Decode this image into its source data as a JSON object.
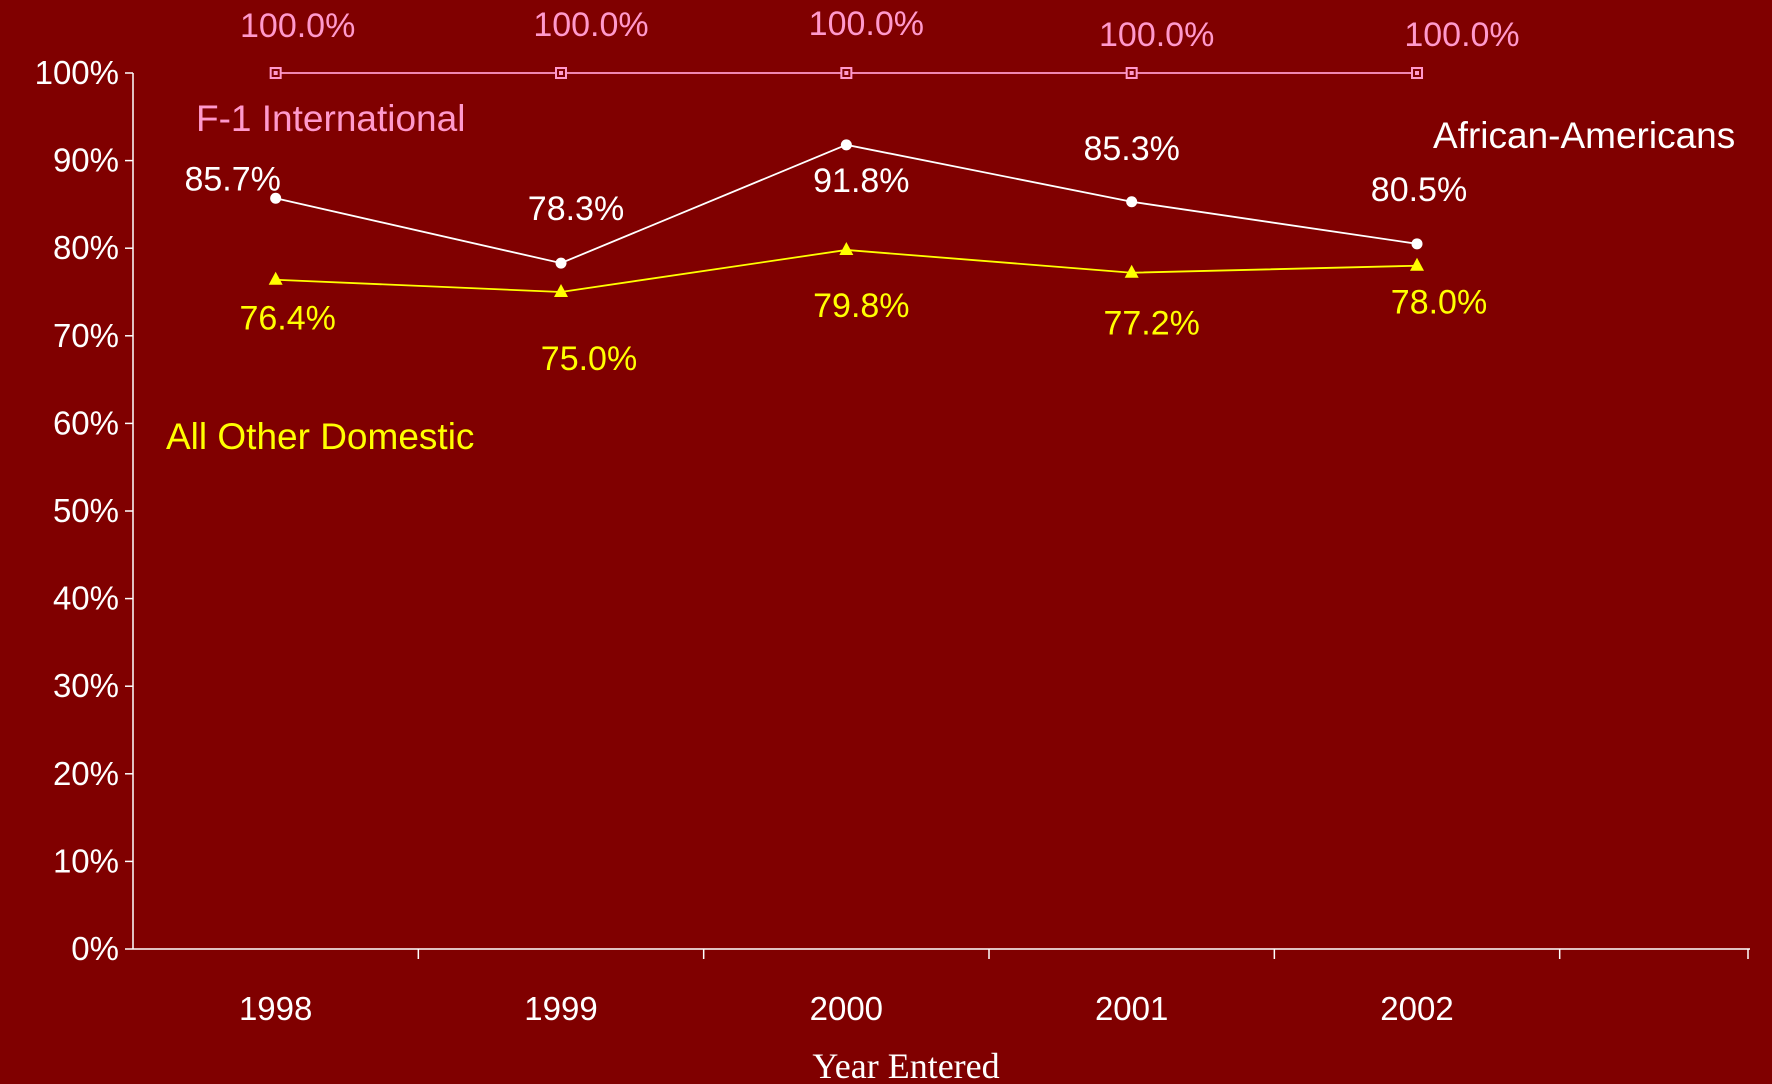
{
  "chart_data": {
    "type": "line",
    "title": "",
    "xlabel": "Year Entered",
    "ylabel": "",
    "categories": [
      "1998",
      "1999",
      "2000",
      "2001",
      "2002"
    ],
    "ylim": [
      0,
      100
    ],
    "yticks": [
      "0%",
      "10%",
      "20%",
      "30%",
      "40%",
      "50%",
      "60%",
      "70%",
      "80%",
      "90%",
      "100%"
    ],
    "grid": false,
    "legend": "inline labels",
    "series": [
      {
        "name": "F-1 International",
        "color": "#ff99cc",
        "marker": "square",
        "values": [
          100.0,
          100.0,
          100.0,
          100.0,
          100.0
        ],
        "labels": [
          "100.0%",
          "100.0%",
          "100.0%",
          "100.0%",
          "100.0%"
        ]
      },
      {
        "name": "African-Americans",
        "color": "#ffffff",
        "marker": "circle",
        "values": [
          85.7,
          78.3,
          91.8,
          85.3,
          80.5
        ],
        "labels": [
          "85.7%",
          "78.3%",
          "91.8%",
          "85.3%",
          "80.5%"
        ]
      },
      {
        "name": "All Other Domestic",
        "color": "#ffff00",
        "marker": "triangle",
        "values": [
          76.4,
          75.0,
          79.8,
          77.2,
          78.0
        ],
        "labels": [
          "76.4%",
          "75.0%",
          "79.8%",
          "77.2%",
          "78.0%"
        ]
      }
    ]
  }
}
